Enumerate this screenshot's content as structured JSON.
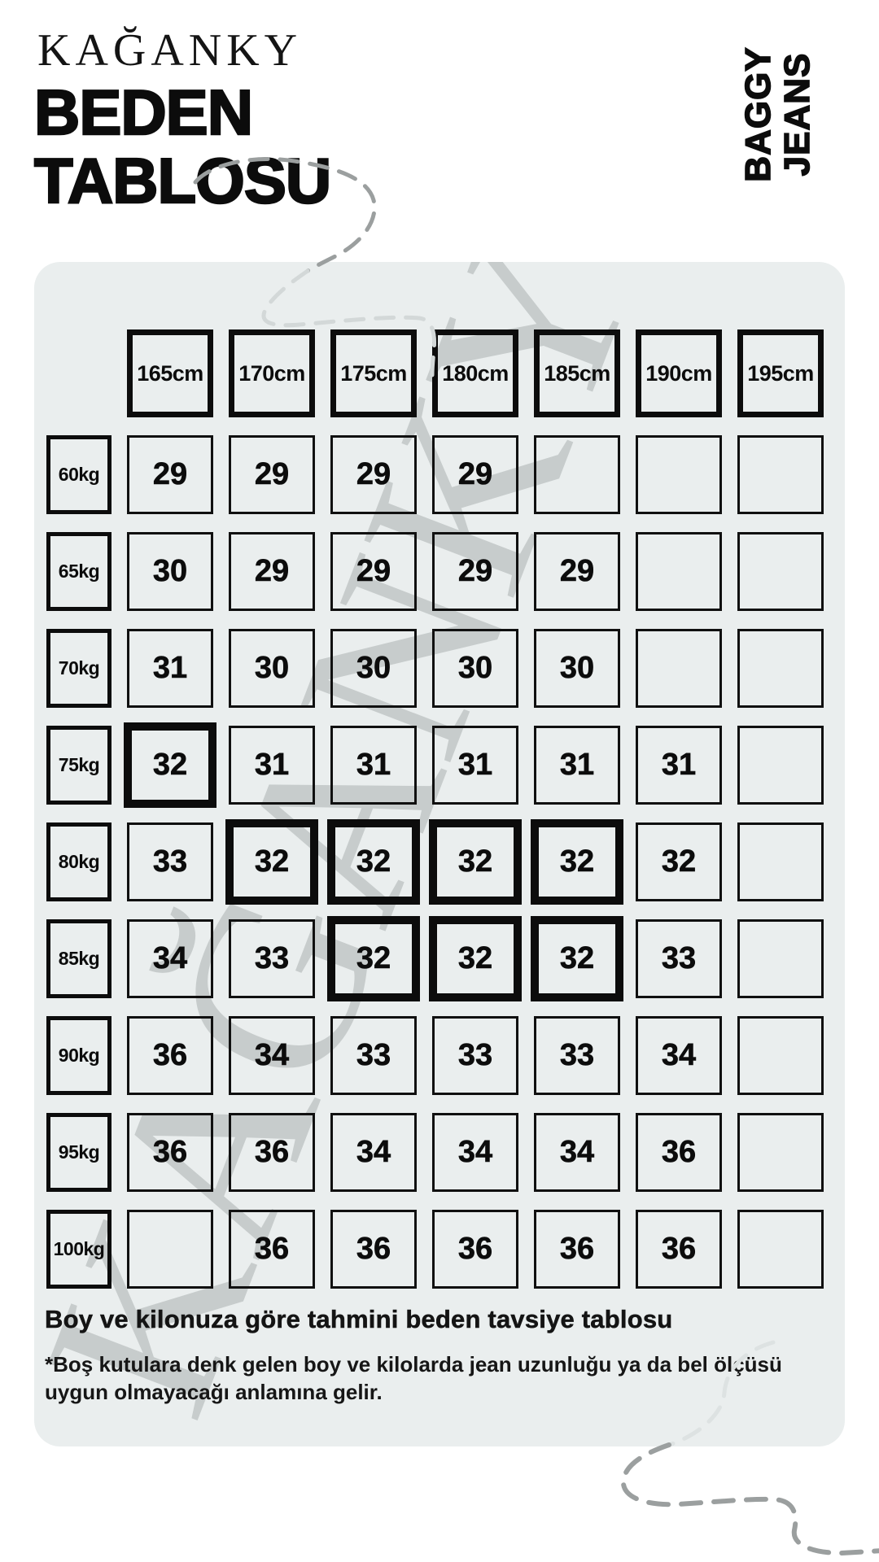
{
  "brand": "KAĞANKY",
  "title": {
    "line1": "BEDEN",
    "line2": "TABLOSU"
  },
  "side_label": {
    "line1": "BAGGY",
    "line2": "JEANS"
  },
  "watermark": "KAĞANKY",
  "table": {
    "col_headers": [
      "165cm",
      "170cm",
      "175cm",
      "180cm",
      "185cm",
      "190cm",
      "195cm"
    ],
    "row_headers": [
      "60kg",
      "65kg",
      "70kg",
      "75kg",
      "80kg",
      "85kg",
      "90kg",
      "95kg",
      "100kg"
    ],
    "cells": [
      [
        "29",
        "29",
        "29",
        "29",
        "",
        "",
        ""
      ],
      [
        "30",
        "29",
        "29",
        "29",
        "29",
        "",
        ""
      ],
      [
        "31",
        "30",
        "30",
        "30",
        "30",
        "",
        ""
      ],
      [
        "32",
        "31",
        "31",
        "31",
        "31",
        "31",
        ""
      ],
      [
        "33",
        "32",
        "32",
        "32",
        "32",
        "32",
        ""
      ],
      [
        "34",
        "33",
        "32",
        "32",
        "32",
        "33",
        ""
      ],
      [
        "36",
        "34",
        "33",
        "33",
        "33",
        "34",
        ""
      ],
      [
        "36",
        "36",
        "34",
        "34",
        "34",
        "36",
        ""
      ],
      [
        "",
        "36",
        "36",
        "36",
        "36",
        "36",
        ""
      ]
    ],
    "highlighted": [
      [
        3,
        0
      ],
      [
        4,
        1
      ],
      [
        4,
        2
      ],
      [
        4,
        3
      ],
      [
        4,
        4
      ],
      [
        5,
        2
      ],
      [
        5,
        3
      ],
      [
        5,
        4
      ]
    ]
  },
  "footer": {
    "heading": "Boy ve kilonuza göre tahmini beden tavsiye tablosu",
    "note_line1": "*Boş kutulara denk gelen boy ve kilolarda jean uzunluğu ya da bel ölçüsü",
    "note_line2": "uygun olmayacağı anlamına gelir."
  },
  "colors": {
    "panel": "#eaeeee",
    "ink": "#0c0c0c",
    "watermark": "#c7cccc",
    "squiggle_dark": "#9b9f9f",
    "squiggle_light": "#d3d8d8",
    "squiggle_faint": "#dde2e2"
  }
}
